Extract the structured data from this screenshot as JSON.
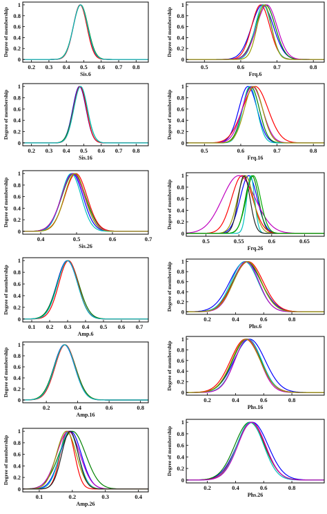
{
  "figure": {
    "ylabel": "Degree of membership",
    "series_colors": [
      "#0000ff",
      "#008000",
      "#ff0000",
      "#00bfbf",
      "#bf00bf",
      "#999900",
      "#222222",
      "#00aa00"
    ]
  },
  "chart_data": [
    {
      "type": "line",
      "xlabel": "Sis.6",
      "ylabel": "Degree of membership",
      "xlim": [
        0.15,
        0.87
      ],
      "ylim": [
        -0.05,
        1.05
      ],
      "xticks": [
        0.2,
        0.3,
        0.4,
        0.5,
        0.6,
        0.7,
        0.8
      ],
      "xtick_labels": [
        "0.2",
        "0.3",
        "0.4",
        "0.5",
        "0.6",
        "0.7",
        "0.8"
      ],
      "yticks": [
        0,
        0.2,
        0.4,
        0.6,
        0.8,
        1
      ],
      "ytick_labels": [
        "0",
        "0.2",
        "0.4",
        "0.6",
        "0.8",
        "1"
      ],
      "series": [
        {
          "mean": 0.48,
          "sigma": 0.04
        },
        {
          "mean": 0.482,
          "sigma": 0.042
        },
        {
          "mean": 0.479,
          "sigma": 0.039
        },
        {
          "mean": 0.481,
          "sigma": 0.041
        }
      ]
    },
    {
      "type": "line",
      "xlabel": "Frq.6",
      "ylabel": "Degree of membership",
      "xlim": [
        0.45,
        0.83
      ],
      "ylim": [
        -0.05,
        1.05
      ],
      "xticks": [
        0.5,
        0.6,
        0.7,
        0.8
      ],
      "xtick_labels": [
        "0.5",
        "0.6",
        "0.7",
        "0.8"
      ],
      "yticks": [
        0,
        0.2,
        0.4,
        0.6,
        0.8,
        1
      ],
      "ytick_labels": [
        "0",
        "0.2",
        "0.4",
        "0.6",
        "0.8",
        "1"
      ],
      "series": [
        {
          "mean": 0.66,
          "sigma": 0.03
        },
        {
          "mean": 0.668,
          "sigma": 0.027
        },
        {
          "mean": 0.655,
          "sigma": 0.025
        },
        {
          "mean": 0.662,
          "sigma": 0.022
        },
        {
          "mean": 0.672,
          "sigma": 0.028
        },
        {
          "mean": 0.665,
          "sigma": 0.02
        }
      ]
    },
    {
      "type": "line",
      "xlabel": "Sis.16",
      "ylabel": "Degree of membership",
      "xlim": [
        0.15,
        0.87
      ],
      "ylim": [
        -0.05,
        1.05
      ],
      "xticks": [
        0.2,
        0.3,
        0.4,
        0.5,
        0.6,
        0.7,
        0.8
      ],
      "xtick_labels": [
        "0.2",
        "0.3",
        "0.4",
        "0.5",
        "0.6",
        "0.7",
        "0.8"
      ],
      "yticks": [
        0,
        0.2,
        0.4,
        0.6,
        0.8,
        1
      ],
      "ytick_labels": [
        "0",
        "0.2",
        "0.4",
        "0.6",
        "0.8",
        "1"
      ],
      "series": [
        {
          "mean": 0.475,
          "sigma": 0.038
        },
        {
          "mean": 0.48,
          "sigma": 0.04
        },
        {
          "mean": 0.478,
          "sigma": 0.037
        },
        {
          "mean": 0.482,
          "sigma": 0.039
        }
      ]
    },
    {
      "type": "line",
      "xlabel": "Frq.16",
      "ylabel": "Degree of membership",
      "xlim": [
        0.45,
        0.83
      ],
      "ylim": [
        -0.05,
        1.05
      ],
      "xticks": [
        0.5,
        0.6,
        0.7,
        0.8
      ],
      "xtick_labels": [
        "0.5",
        "0.6",
        "0.7",
        "0.8"
      ],
      "yticks": [
        0,
        0.2,
        0.4,
        0.6,
        0.8,
        1
      ],
      "ytick_labels": [
        "0",
        "0.2",
        "0.4",
        "0.6",
        "0.8",
        "1"
      ],
      "series": [
        {
          "mean": 0.62,
          "sigma": 0.025
        },
        {
          "mean": 0.628,
          "sigma": 0.023
        },
        {
          "mean": 0.64,
          "sigma": 0.035
        },
        {
          "mean": 0.625,
          "sigma": 0.02
        },
        {
          "mean": 0.632,
          "sigma": 0.028
        },
        {
          "mean": 0.635,
          "sigma": 0.025
        }
      ]
    },
    {
      "type": "line",
      "xlabel": "Sis.26",
      "ylabel": "Degree of membership",
      "xlim": [
        0.35,
        0.7
      ],
      "ylim": [
        -0.05,
        1.05
      ],
      "xticks": [
        0.4,
        0.5,
        0.6,
        0.7
      ],
      "xtick_labels": [
        "0.4",
        "0.5",
        "0.6",
        "0.7"
      ],
      "yticks": [
        0,
        0.2,
        0.4,
        0.6,
        0.8,
        1
      ],
      "ytick_labels": [
        "0",
        "0.2",
        "0.4",
        "0.6",
        "0.8",
        "1"
      ],
      "series": [
        {
          "mean": 0.488,
          "sigma": 0.03
        },
        {
          "mean": 0.492,
          "sigma": 0.033
        },
        {
          "mean": 0.498,
          "sigma": 0.031
        },
        {
          "mean": 0.485,
          "sigma": 0.028
        },
        {
          "mean": 0.49,
          "sigma": 0.032
        },
        {
          "mean": 0.495,
          "sigma": 0.029
        }
      ]
    },
    {
      "type": "line",
      "xlabel": "Frq.26",
      "ylabel": "Degree of membership",
      "xlim": [
        0.47,
        0.68
      ],
      "ylim": [
        -0.05,
        1.05
      ],
      "xticks": [
        0.5,
        0.55,
        0.6,
        0.65
      ],
      "xtick_labels": [
        "0.5",
        "0.55",
        "0.6",
        "0.65"
      ],
      "yticks": [
        0,
        0.2,
        0.4,
        0.6,
        0.8,
        1
      ],
      "ytick_labels": [
        "0",
        "0.2",
        "0.4",
        "0.6",
        "0.8",
        "1"
      ],
      "series": [
        {
          "mean": 0.565,
          "sigma": 0.013
        },
        {
          "mean": 0.57,
          "sigma": 0.01
        },
        {
          "mean": 0.555,
          "sigma": 0.016
        },
        {
          "mean": 0.568,
          "sigma": 0.006
        },
        {
          "mean": 0.55,
          "sigma": 0.025
        },
        {
          "mean": 0.56,
          "sigma": 0.012
        },
        {
          "mean": 0.558,
          "sigma": 0.009
        },
        {
          "mean": 0.572,
          "sigma": 0.011
        }
      ]
    },
    {
      "type": "line",
      "xlabel": "Amp.6",
      "ylabel": "Degree of membership",
      "xlim": [
        0.05,
        0.75
      ],
      "ylim": [
        -0.05,
        1.05
      ],
      "xticks": [
        0.1,
        0.2,
        0.3,
        0.4,
        0.5,
        0.6,
        0.7
      ],
      "xtick_labels": [
        "0.1",
        "0.2",
        "0.3",
        "0.4",
        "0.5",
        "0.6",
        "0.7"
      ],
      "yticks": [
        0,
        0.2,
        0.4,
        0.6,
        0.8,
        1
      ],
      "ytick_labels": [
        "0",
        "0.2",
        "0.4",
        "0.6",
        "0.8",
        "1"
      ],
      "series": [
        {
          "mean": 0.298,
          "sigma": 0.058
        },
        {
          "mean": 0.302,
          "sigma": 0.06
        },
        {
          "mean": 0.305,
          "sigma": 0.054
        },
        {
          "mean": 0.3,
          "sigma": 0.056
        }
      ]
    },
    {
      "type": "line",
      "xlabel": "Phs.6",
      "ylabel": "Degree of membership",
      "xlim": [
        0.05,
        1.03
      ],
      "ylim": [
        -0.05,
        1.05
      ],
      "xticks": [
        0.2,
        0.4,
        0.6,
        0.8
      ],
      "xtick_labels": [
        "0.2",
        "0.4",
        "0.6",
        "0.8"
      ],
      "yticks": [
        0,
        0.2,
        0.4,
        0.6,
        0.8,
        1
      ],
      "ytick_labels": [
        "0",
        "0.2",
        "0.4",
        "0.6",
        "0.8",
        "1"
      ],
      "series": [
        {
          "mean": 0.47,
          "sigma": 0.11
        },
        {
          "mean": 0.48,
          "sigma": 0.1
        },
        {
          "mean": 0.49,
          "sigma": 0.105
        },
        {
          "mean": 0.465,
          "sigma": 0.095
        },
        {
          "mean": 0.475,
          "sigma": 0.09
        },
        {
          "mean": 0.485,
          "sigma": 0.098
        }
      ]
    },
    {
      "type": "line",
      "xlabel": "Amp.16",
      "ylabel": "Degree of membership",
      "xlim": [
        0.05,
        0.85
      ],
      "ylim": [
        -0.05,
        1.05
      ],
      "xticks": [
        0.2,
        0.4,
        0.6,
        0.8
      ],
      "xtick_labels": [
        "0.2",
        "0.4",
        "0.6",
        "0.8"
      ],
      "yticks": [
        0,
        0.2,
        0.4,
        0.6,
        0.8,
        1
      ],
      "ytick_labels": [
        "0",
        "0.2",
        "0.4",
        "0.6",
        "0.8",
        "1"
      ],
      "series": [
        {
          "mean": 0.315,
          "sigma": 0.066
        },
        {
          "mean": 0.318,
          "sigma": 0.068
        },
        {
          "mean": 0.32,
          "sigma": 0.064
        },
        {
          "mean": 0.317,
          "sigma": 0.065
        }
      ]
    },
    {
      "type": "line",
      "xlabel": "Phs.16",
      "ylabel": "Degree of membership",
      "xlim": [
        0.05,
        1.03
      ],
      "ylim": [
        -0.05,
        1.05
      ],
      "xticks": [
        0.2,
        0.4,
        0.6,
        0.8
      ],
      "xtick_labels": [
        "0.2",
        "0.4",
        "0.6",
        "0.8"
      ],
      "yticks": [
        0,
        0.2,
        0.4,
        0.6,
        0.8,
        1
      ],
      "ytick_labels": [
        "0",
        "0.2",
        "0.4",
        "0.6",
        "0.8",
        "1"
      ],
      "series": [
        {
          "mean": 0.5,
          "sigma": 0.11
        },
        {
          "mean": 0.48,
          "sigma": 0.1
        },
        {
          "mean": 0.47,
          "sigma": 0.105
        },
        {
          "mean": 0.49,
          "sigma": 0.095
        },
        {
          "mean": 0.485,
          "sigma": 0.09
        },
        {
          "mean": 0.475,
          "sigma": 0.1
        }
      ]
    },
    {
      "type": "line",
      "xlabel": "Amp.26",
      "ylabel": "Degree of membership",
      "xlim": [
        0.05,
        0.43
      ],
      "ylim": [
        -0.05,
        1.05
      ],
      "xticks": [
        0.1,
        0.2,
        0.3,
        0.4
      ],
      "xtick_labels": [
        "0.1",
        "0.2",
        "0.3",
        "0.4"
      ],
      "yticks": [
        0,
        0.2,
        0.4,
        0.6,
        0.8,
        1
      ],
      "ytick_labels": [
        "0",
        "0.2",
        "0.4",
        "0.6",
        "0.8",
        "1"
      ],
      "series": [
        {
          "mean": 0.195,
          "sigma": 0.032
        },
        {
          "mean": 0.2,
          "sigma": 0.04
        },
        {
          "mean": 0.185,
          "sigma": 0.022
        },
        {
          "mean": 0.19,
          "sigma": 0.028
        },
        {
          "mean": 0.188,
          "sigma": 0.035
        },
        {
          "mean": 0.182,
          "sigma": 0.03
        },
        {
          "mean": 0.193,
          "sigma": 0.025
        }
      ]
    },
    {
      "type": "line",
      "xlabel": "Phs.26",
      "ylabel": "Degree of membership",
      "xlim": [
        0.05,
        1.03
      ],
      "ylim": [
        -0.05,
        1.05
      ],
      "xticks": [
        0.2,
        0.4,
        0.6,
        0.8
      ],
      "xtick_labels": [
        "0.2",
        "0.4",
        "0.6",
        "0.8"
      ],
      "yticks": [
        0,
        0.2,
        0.4,
        0.6,
        0.8,
        1
      ],
      "ytick_labels": [
        "0",
        "0.2",
        "0.4",
        "0.6",
        "0.8",
        "1"
      ],
      "series": [
        {
          "mean": 0.52,
          "sigma": 0.11
        },
        {
          "mean": 0.5,
          "sigma": 0.105
        },
        {
          "mean": 0.51,
          "sigma": 0.1
        },
        {
          "mean": 0.505,
          "sigma": 0.095
        },
        {
          "mean": 0.515,
          "sigma": 0.098
        }
      ]
    }
  ]
}
